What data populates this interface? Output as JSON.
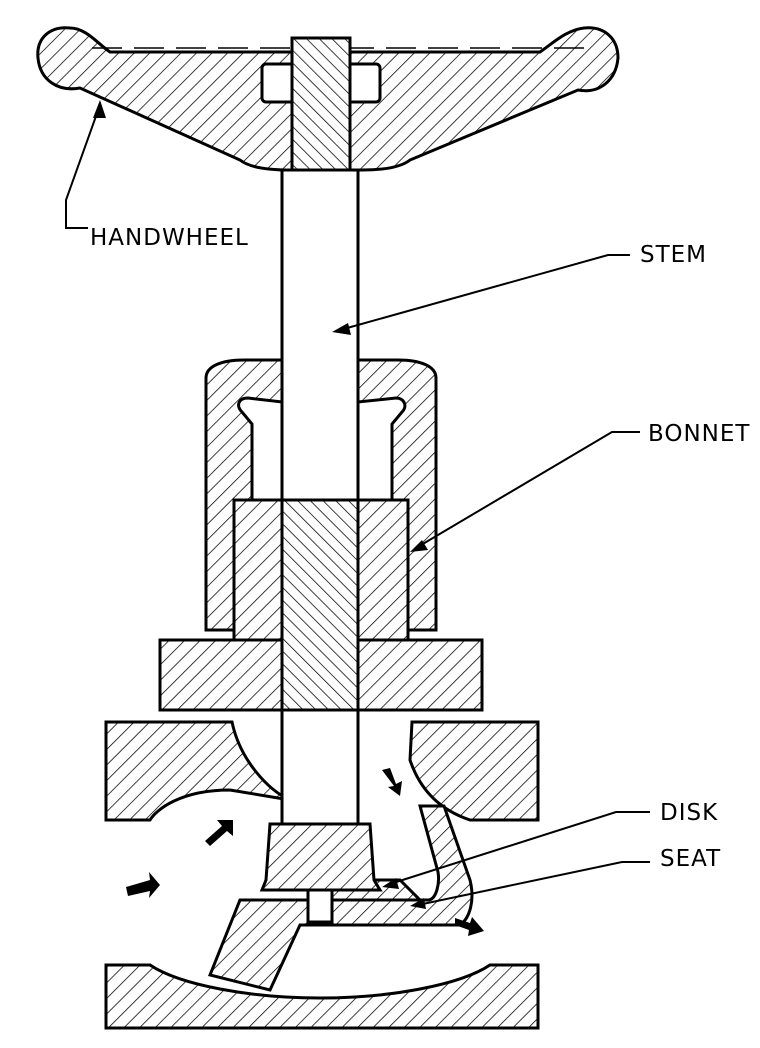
{
  "labels": {
    "handwheel": "HANDWHEEL",
    "stem": "STEM",
    "bonnet": "BONNET",
    "disk": "DISK",
    "seat": "SEAT"
  },
  "colors": {
    "stroke": "#000000",
    "background": "#ffffff"
  }
}
